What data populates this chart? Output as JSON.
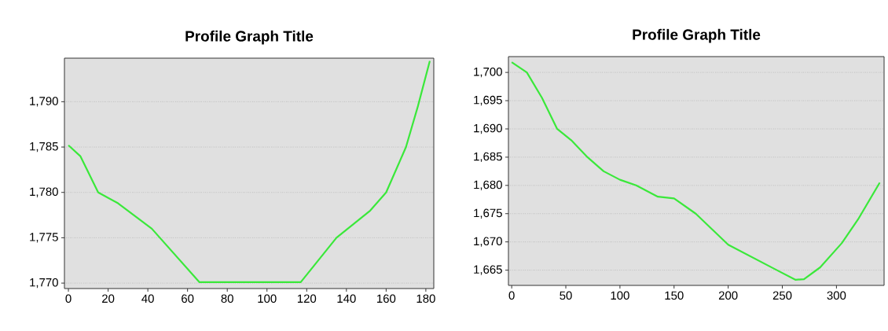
{
  "chart_data": [
    {
      "type": "line",
      "title": "Profile Graph Title",
      "color": "#3ae83a",
      "grid": "y",
      "x": [
        0,
        6,
        15,
        25,
        42,
        66,
        117,
        135,
        152,
        160,
        170,
        176,
        182
      ],
      "values": [
        1785.2,
        1784,
        1780,
        1778.8,
        1776,
        1770.1,
        1770.1,
        1775,
        1778,
        1780,
        1785,
        1789.5,
        1794.5
      ],
      "xlim": [
        -2,
        184
      ],
      "ylim": [
        1769.4,
        1794.8
      ],
      "xticks": [
        0,
        20,
        40,
        60,
        80,
        100,
        120,
        140,
        160,
        180
      ],
      "yticks": [
        {
          "value": 1770,
          "label": "1,770"
        },
        {
          "value": 1775,
          "label": "1,775"
        },
        {
          "value": 1780,
          "label": "1,780"
        },
        {
          "value": 1785,
          "label": "1,785"
        },
        {
          "value": 1790,
          "label": "1,790"
        }
      ]
    },
    {
      "type": "line",
      "title": "Profile Graph Title",
      "color": "#3ae83a",
      "grid": "y",
      "x": [
        0,
        14,
        28,
        42,
        55,
        70,
        85,
        100,
        115,
        135,
        150,
        170,
        200,
        245,
        262,
        270,
        285,
        305,
        320,
        340
      ],
      "values": [
        1701.8,
        1700,
        1695.5,
        1690,
        1688,
        1685,
        1682.5,
        1681,
        1680,
        1678,
        1677.7,
        1675,
        1669.5,
        1665,
        1663.3,
        1663.4,
        1665.5,
        1669.8,
        1674,
        1680.5
      ],
      "xlim": [
        -3,
        344
      ],
      "ylim": [
        1662.3,
        1702.8
      ],
      "xticks": [
        0,
        50,
        100,
        150,
        200,
        250,
        300
      ],
      "yticks": [
        {
          "value": 1665,
          "label": "1,665"
        },
        {
          "value": 1670,
          "label": "1,670"
        },
        {
          "value": 1675,
          "label": "1,675"
        },
        {
          "value": 1680,
          "label": "1,680"
        },
        {
          "value": 1685,
          "label": "1,685"
        },
        {
          "value": 1690,
          "label": "1,690"
        },
        {
          "value": 1695,
          "label": "1,695"
        },
        {
          "value": 1700,
          "label": "1,700"
        }
      ]
    }
  ]
}
